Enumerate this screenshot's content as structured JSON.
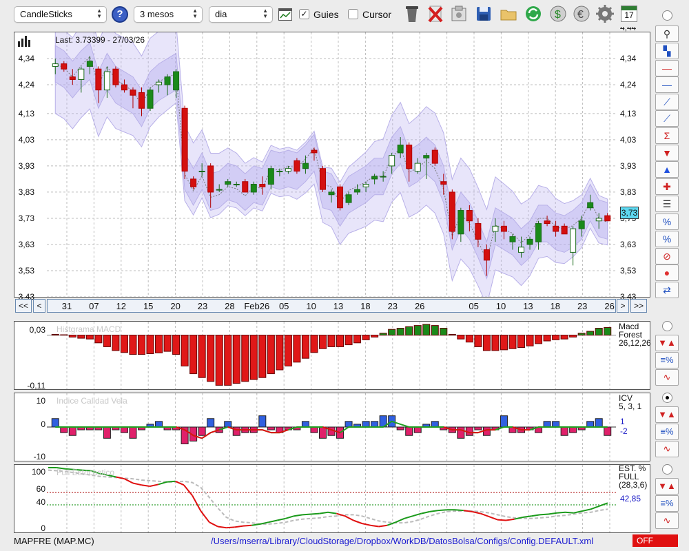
{
  "toolbar": {
    "chart_type": "CandleSticks",
    "help": "?",
    "period": "3 mesos",
    "interval": "dia",
    "guides_label": "Guies",
    "guides_checked": true,
    "cursor_label": "Cursor",
    "cursor_checked": false,
    "calendar_day": "17"
  },
  "main": {
    "last_label": "Last: 3.73399 - 27/03/26",
    "current_price": "3,73",
    "y_ticks": [
      "4,34",
      "4,24",
      "4,13",
      "4,03",
      "3,93",
      "3,83",
      "3,73",
      "3,63",
      "3,53",
      "3,43"
    ],
    "y_partial": "4,44",
    "dates": [
      "31",
      "07",
      "12",
      "15",
      "20",
      "23",
      "28",
      "Feb26",
      "05",
      "10",
      "13",
      "18",
      "23",
      "26",
      "05",
      "10",
      "13",
      "18",
      "23",
      "26"
    ],
    "nav": {
      "first": "<<",
      "prev": "<",
      "next": ">",
      "last": ">>"
    }
  },
  "macd": {
    "title": "Histgrama MACD",
    "side": [
      "Macd",
      "Forest",
      "26,12,26"
    ],
    "y_ticks": [
      "0,03",
      "-0,11"
    ]
  },
  "icv": {
    "title": "Indice Calidad Vela",
    "side": [
      "ICV",
      "5, 3, 1"
    ],
    "values": [
      "1",
      "-2"
    ],
    "y_ticks": [
      "10",
      "0",
      "-10"
    ]
  },
  "stoch": {
    "title": "Full Estocastico",
    "side": [
      "EST. %",
      "FULL",
      "(28,3,6)"
    ],
    "value": "42,85",
    "y_ticks": [
      "100",
      "60",
      "40",
      "0"
    ]
  },
  "status": {
    "symbol": "MAPFRE (MAP.MC)",
    "path": "/Users/mserra/Library/CloudStorage/Dropbox/WorkDB/DatosBolsa/Configs/Config.DEFAULT.xml",
    "state": "OFF"
  },
  "chart_data": {
    "type": "candlestick",
    "ylim": [
      3.43,
      4.44
    ],
    "candles": [
      [
        4.31,
        4.34,
        4.28,
        4.32
      ],
      [
        4.32,
        4.33,
        4.29,
        4.3
      ],
      [
        4.27,
        4.3,
        4.24,
        4.26
      ],
      [
        4.26,
        4.31,
        4.21,
        4.3
      ],
      [
        4.31,
        4.35,
        4.28,
        4.33
      ],
      [
        4.3,
        4.31,
        4.17,
        4.22
      ],
      [
        4.22,
        4.31,
        4.19,
        4.29
      ],
      [
        4.3,
        4.31,
        4.23,
        4.24
      ],
      [
        4.24,
        4.26,
        4.21,
        4.22
      ],
      [
        4.22,
        4.23,
        4.15,
        4.2
      ],
      [
        4.21,
        4.23,
        4.12,
        4.15
      ],
      [
        4.15,
        4.23,
        4.14,
        4.22
      ],
      [
        4.24,
        4.26,
        4.21,
        4.25
      ],
      [
        4.24,
        4.28,
        4.2,
        4.27
      ],
      [
        4.22,
        4.3,
        4.19,
        4.29
      ],
      [
        4.15,
        4.16,
        3.88,
        3.91
      ],
      [
        3.88,
        3.89,
        3.84,
        3.85
      ],
      [
        3.91,
        3.94,
        3.89,
        3.91
      ],
      [
        3.93,
        3.94,
        3.77,
        3.83
      ],
      [
        3.84,
        3.86,
        3.83,
        3.84
      ],
      [
        3.86,
        3.88,
        3.85,
        3.87
      ],
      [
        3.86,
        3.87,
        3.85,
        3.86
      ],
      [
        3.87,
        3.88,
        3.84,
        3.83
      ],
      [
        3.83,
        3.87,
        3.82,
        3.86
      ],
      [
        3.86,
        3.89,
        3.82,
        3.85
      ],
      [
        3.86,
        3.93,
        3.84,
        3.92
      ],
      [
        3.91,
        3.92,
        3.89,
        3.91
      ],
      [
        3.91,
        3.93,
        3.9,
        3.92
      ],
      [
        3.95,
        3.96,
        3.9,
        3.91
      ],
      [
        3.92,
        3.97,
        3.9,
        3.94
      ],
      [
        3.99,
        4.0,
        3.95,
        3.98
      ],
      [
        3.92,
        3.93,
        3.83,
        3.84
      ],
      [
        3.82,
        3.84,
        3.79,
        3.83
      ],
      [
        3.85,
        3.86,
        3.76,
        3.77
      ],
      [
        3.79,
        3.83,
        3.78,
        3.82
      ],
      [
        3.83,
        3.86,
        3.82,
        3.84
      ],
      [
        3.85,
        3.87,
        3.83,
        3.86
      ],
      [
        3.88,
        3.9,
        3.86,
        3.89
      ],
      [
        3.89,
        3.91,
        3.87,
        3.89
      ],
      [
        3.93,
        3.98,
        3.9,
        3.97
      ],
      [
        3.98,
        4.04,
        3.96,
        4.01
      ],
      [
        4.01,
        4.02,
        3.87,
        3.92
      ],
      [
        3.91,
        3.96,
        3.9,
        3.94
      ],
      [
        3.96,
        3.98,
        3.88,
        3.97
      ],
      [
        3.99,
        4.0,
        3.93,
        3.94
      ],
      [
        3.87,
        3.9,
        3.82,
        3.86
      ],
      [
        3.83,
        3.84,
        3.65,
        3.68
      ],
      [
        3.67,
        3.77,
        3.64,
        3.76
      ],
      [
        3.76,
        3.78,
        3.68,
        3.72
      ],
      [
        3.71,
        3.73,
        3.62,
        3.65
      ],
      [
        3.61,
        3.63,
        3.51,
        3.57
      ],
      [
        3.68,
        3.73,
        3.64,
        3.7
      ],
      [
        3.7,
        3.72,
        3.65,
        3.68
      ],
      [
        3.64,
        3.67,
        3.61,
        3.66
      ],
      [
        3.6,
        3.66,
        3.58,
        3.62
      ],
      [
        3.63,
        3.66,
        3.61,
        3.65
      ],
      [
        3.64,
        3.72,
        3.61,
        3.71
      ],
      [
        3.72,
        3.74,
        3.7,
        3.71
      ],
      [
        3.7,
        3.72,
        3.66,
        3.68
      ],
      [
        3.7,
        3.71,
        3.67,
        3.67
      ],
      [
        3.6,
        3.7,
        3.55,
        3.69
      ],
      [
        3.69,
        3.74,
        3.66,
        3.72
      ],
      [
        3.77,
        3.82,
        3.76,
        3.79
      ],
      [
        3.72,
        3.75,
        3.69,
        3.73
      ],
      [
        3.74,
        3.75,
        3.72,
        3.72
      ]
    ],
    "macd_hist": [
      0.002,
      0.001,
      -0.005,
      -0.008,
      -0.01,
      -0.02,
      -0.03,
      -0.04,
      -0.045,
      -0.05,
      -0.05,
      -0.048,
      -0.046,
      -0.042,
      -0.05,
      -0.08,
      -0.1,
      -0.11,
      -0.12,
      -0.13,
      -0.13,
      -0.125,
      -0.12,
      -0.115,
      -0.11,
      -0.1,
      -0.09,
      -0.08,
      -0.07,
      -0.06,
      -0.045,
      -0.035,
      -0.03,
      -0.03,
      -0.025,
      -0.02,
      -0.012,
      -0.005,
      0.005,
      0.015,
      0.018,
      0.022,
      0.025,
      0.028,
      0.025,
      0.018,
      0.002,
      -0.01,
      -0.018,
      -0.03,
      -0.04,
      -0.04,
      -0.038,
      -0.035,
      -0.032,
      -0.028,
      -0.022,
      -0.015,
      -0.012,
      -0.01,
      -0.005,
      0.005,
      0.01,
      0.018,
      0.02
    ],
    "icv_bars": [
      3,
      -2,
      -3,
      -1,
      -1,
      -1,
      -4,
      -1,
      -2,
      -4,
      -1,
      1,
      2,
      -1,
      -1,
      -6,
      -5,
      -3,
      3,
      -2,
      2,
      -3,
      -2,
      -2,
      4,
      -1,
      -2,
      -1,
      -1,
      2,
      -2,
      -4,
      -3,
      -4,
      2,
      1,
      2,
      2,
      4,
      4,
      -1,
      -3,
      -2,
      1,
      2,
      -1,
      -2,
      -4,
      -3,
      -1,
      -3,
      -1,
      4,
      -2,
      -2,
      -1,
      -2,
      2,
      2,
      -3,
      -2,
      -1,
      2,
      3,
      -3,
      -2
    ],
    "icv_line": [
      0,
      0,
      0,
      0,
      0,
      0,
      0,
      0,
      0,
      0,
      0,
      0,
      0,
      0,
      0,
      -1,
      -3,
      -4,
      -2,
      -1,
      0,
      -1,
      -1,
      -1,
      -1,
      -2,
      -2,
      -1,
      0,
      0,
      0,
      0,
      -1,
      -2,
      0,
      0,
      0,
      0,
      0,
      2,
      1,
      0,
      0,
      0,
      0,
      0,
      -1,
      -1,
      -2,
      -2,
      -1,
      -1,
      0,
      0,
      -1,
      -1,
      0,
      0,
      0,
      0,
      0,
      0,
      0,
      0,
      0
    ],
    "stoch_k": [
      100,
      100,
      98,
      97,
      96,
      95,
      91,
      88,
      85,
      82,
      75,
      72,
      70,
      73,
      77,
      78,
      72,
      55,
      30,
      12,
      5,
      3,
      4,
      6,
      7,
      9,
      12,
      15,
      18,
      22,
      24,
      25,
      26,
      28,
      26,
      22,
      15,
      10,
      7,
      5,
      7,
      12,
      18,
      22,
      26,
      29,
      31,
      32,
      32,
      31,
      29,
      26,
      21,
      16,
      15,
      17,
      20,
      22,
      24,
      25,
      27,
      28,
      27,
      30,
      33,
      38,
      43
    ],
    "stoch_d": [
      96,
      95,
      94,
      92,
      90,
      88,
      86,
      85,
      84,
      83,
      82,
      80,
      79,
      78,
      77,
      77,
      78,
      76,
      68,
      52,
      35,
      20,
      14,
      12,
      11,
      9,
      9,
      10,
      12,
      15,
      17,
      18,
      19,
      21,
      22,
      24,
      24,
      22,
      18,
      14,
      12,
      11,
      11,
      13,
      17,
      22,
      26,
      29,
      30,
      30,
      30,
      29,
      27,
      24,
      21,
      19,
      18,
      18,
      19,
      20,
      22,
      23,
      25,
      27,
      28,
      31,
      33
    ]
  }
}
